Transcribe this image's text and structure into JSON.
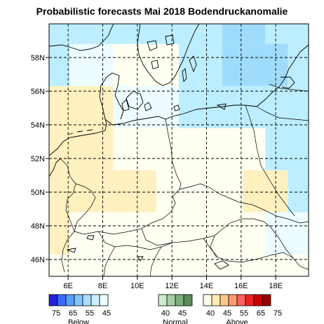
{
  "title": "Probabilistic forecasts Mai 2018 Bodendruckanomalie",
  "map": {
    "lat_ticks": [
      "46N",
      "48N",
      "50N",
      "52N",
      "54N",
      "56N",
      "58N"
    ],
    "lon_ticks": [
      "6E",
      "8E",
      "10E",
      "12E",
      "14E",
      "16E",
      "18E"
    ],
    "lon_range": [
      4.9,
      19.9
    ],
    "lat_range": [
      45.0,
      60.0
    ],
    "gridlines": "dashed"
  },
  "colorbar": {
    "groups": [
      {
        "label": "Below",
        "ticks": [
          "75",
          "65",
          "55",
          "45"
        ],
        "colors": [
          "#2222dd",
          "#3a6df5",
          "#55a0ff",
          "#7fc4ff",
          "#a9ddff",
          "#cdeeff",
          "#ebfbff"
        ]
      },
      {
        "label": "Normal",
        "ticks": [
          "40",
          "45"
        ],
        "colors": [
          "#cfe9cf",
          "#a7cfa7",
          "#80ad80",
          "#5a8a5a"
        ]
      },
      {
        "label": "Above",
        "ticks": [
          "40",
          "45",
          "55",
          "65",
          "75"
        ],
        "colors": [
          "#fffbe6",
          "#ffeab3",
          "#ffc88a",
          "#ff9a70",
          "#ff6060",
          "#ee2222",
          "#cc0000",
          "#990000"
        ]
      }
    ]
  },
  "forecast_cells": [
    {
      "lon": 4.9,
      "lat": 58.8,
      "w": 10.0,
      "h": 1.2,
      "cat": "below45"
    },
    {
      "lon": 14.9,
      "lat": 58.8,
      "w": 2.5,
      "h": 1.2,
      "cat": "below50"
    },
    {
      "lon": 17.4,
      "lat": 58.8,
      "w": 2.5,
      "h": 1.2,
      "cat": "below45"
    },
    {
      "lon": 4.9,
      "lat": 56.3,
      "w": 1.2,
      "h": 2.5,
      "cat": "below45"
    },
    {
      "lon": 6.1,
      "lat": 56.3,
      "w": 2.5,
      "h": 2.5,
      "cat": "below40"
    },
    {
      "lon": 8.6,
      "lat": 56.3,
      "w": 3.8,
      "h": 2.5,
      "cat": "normal_white"
    },
    {
      "lon": 12.4,
      "lat": 56.3,
      "w": 2.5,
      "h": 2.5,
      "cat": "below45"
    },
    {
      "lon": 14.9,
      "lat": 56.3,
      "w": 2.5,
      "h": 2.5,
      "cat": "below50"
    },
    {
      "lon": 17.4,
      "lat": 56.3,
      "w": 1.3,
      "h": 2.5,
      "cat": "below50"
    },
    {
      "lon": 18.7,
      "lat": 56.3,
      "w": 1.2,
      "h": 2.5,
      "cat": "below45"
    },
    {
      "lon": 4.9,
      "lat": 53.8,
      "w": 3.7,
      "h": 2.5,
      "cat": "above40"
    },
    {
      "lon": 8.6,
      "lat": 53.8,
      "w": 3.8,
      "h": 2.5,
      "cat": "below40"
    },
    {
      "lon": 12.4,
      "lat": 53.8,
      "w": 7.5,
      "h": 2.5,
      "cat": "below45"
    },
    {
      "lon": 4.9,
      "lat": 51.3,
      "w": 3.7,
      "h": 2.5,
      "cat": "above40"
    },
    {
      "lon": 8.6,
      "lat": 51.3,
      "w": 8.8,
      "h": 2.5,
      "cat": "normal_white"
    },
    {
      "lon": 17.4,
      "lat": 51.3,
      "w": 2.5,
      "h": 2.5,
      "cat": "below45"
    },
    {
      "lon": 4.9,
      "lat": 48.8,
      "w": 6.2,
      "h": 2.5,
      "cat": "above40"
    },
    {
      "lon": 11.1,
      "lat": 48.8,
      "w": 5.0,
      "h": 2.5,
      "cat": "normal_white"
    },
    {
      "lon": 16.1,
      "lat": 48.8,
      "w": 2.6,
      "h": 2.5,
      "cat": "above40"
    },
    {
      "lon": 18.7,
      "lat": 48.8,
      "w": 1.2,
      "h": 2.5,
      "cat": "below45"
    },
    {
      "lon": 4.9,
      "lat": 46.3,
      "w": 1.2,
      "h": 2.5,
      "cat": "above40"
    },
    {
      "lon": 6.1,
      "lat": 46.3,
      "w": 11.3,
      "h": 2.5,
      "cat": "normal_white"
    },
    {
      "lon": 17.4,
      "lat": 46.3,
      "w": 2.5,
      "h": 2.5,
      "cat": "below40"
    },
    {
      "lon": 4.9,
      "lat": 45.0,
      "w": 15.0,
      "h": 1.3,
      "cat": "normal_white"
    }
  ],
  "category_colors": {
    "below50": "#9fdcfb",
    "below45": "#bdeeff",
    "below40": "#ecfcff",
    "normal_white": "#fffff2",
    "above40": "#fff0c0"
  }
}
